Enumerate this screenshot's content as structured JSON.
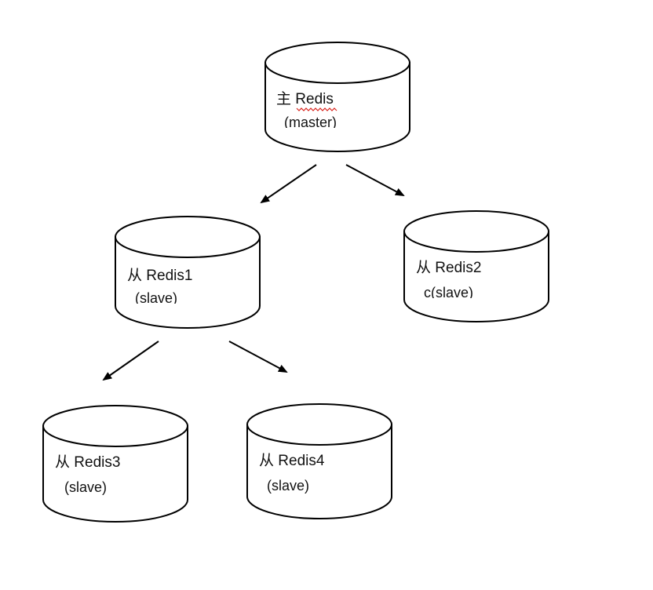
{
  "nodes": {
    "master": {
      "label": "主 Redis",
      "sublabel": "(master)"
    },
    "slave1": {
      "label": "从 Redis1",
      "sublabel": "(slave)"
    },
    "slave2": {
      "label": "从 Redis2",
      "sublabel": "c(slave)"
    },
    "slave3": {
      "label": "从 Redis3",
      "sublabel": "(slave)"
    },
    "slave4": {
      "label": "从 Redis4",
      "sublabel": "(slave)"
    }
  },
  "colors": {
    "stroke": "#000000",
    "spellcheck_underline": "#d9231c"
  }
}
